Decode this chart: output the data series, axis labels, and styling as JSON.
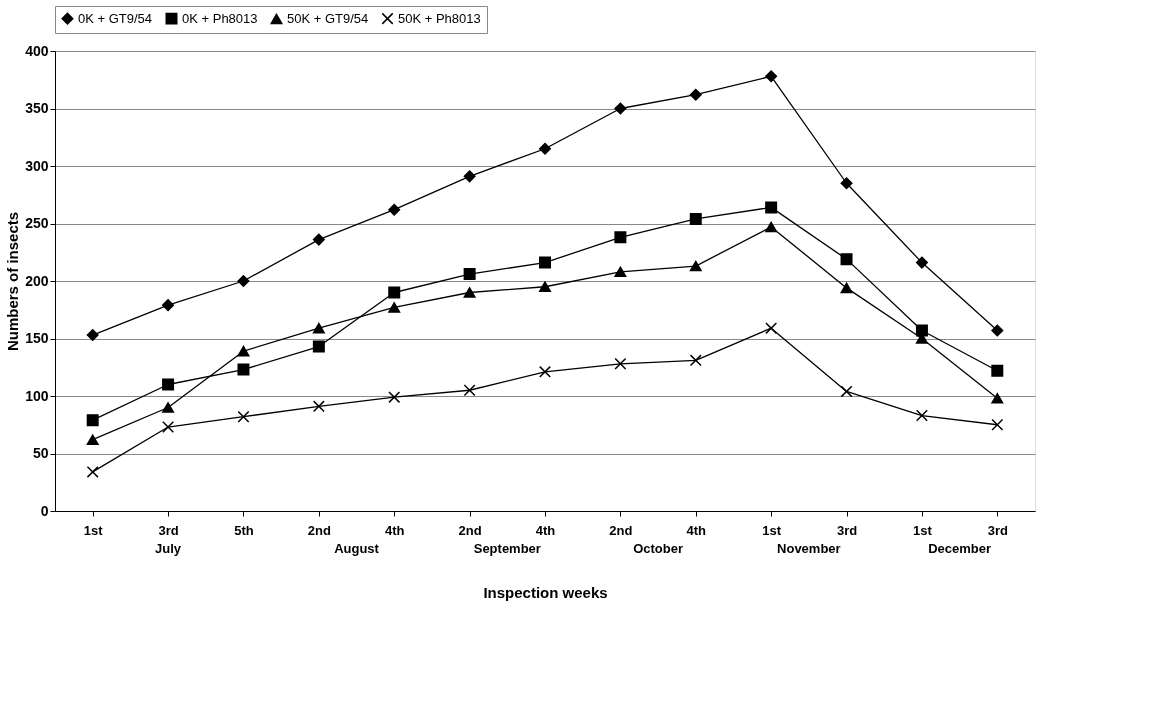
{
  "chart_data": {
    "type": "line",
    "xlabel": "Inspection weeks",
    "ylabel": "Numbers of insects",
    "categories": [
      "1st",
      "3rd",
      "5th",
      "2nd",
      "4th",
      "2nd",
      "4th",
      "2nd",
      "4th",
      "1st",
      "3rd",
      "1st",
      "3rd"
    ],
    "annotations": [
      "July",
      "August",
      "September",
      "October",
      "November",
      "December"
    ],
    "series": [
      {
        "name": "0K + GT9/54",
        "color": "#000000",
        "marker": "diamond",
        "values": [
          153,
          179,
          200,
          236,
          262,
          291,
          315,
          350,
          362,
          378,
          285,
          216,
          157
        ]
      },
      {
        "name": "0K + Ph8013",
        "color": "#000000",
        "marker": "square",
        "values": [
          79,
          110,
          123,
          143,
          190,
          206,
          216,
          238,
          254,
          264,
          219,
          157,
          122
        ]
      },
      {
        "name": "50K + GT9/54",
        "color": "#000000",
        "marker": "triangle",
        "values": [
          62,
          90,
          139,
          159,
          177,
          190,
          195,
          208,
          213,
          247,
          194,
          150,
          98
        ]
      },
      {
        "name": "50K + Ph8013",
        "color": "#000000",
        "marker": "cross",
        "values": [
          34,
          73,
          82,
          91,
          99,
          105,
          121,
          128,
          131,
          159,
          104,
          83,
          75
        ]
      }
    ],
    "ylim": [
      0,
      400
    ],
    "yticks": [
      0,
      50,
      100,
      150,
      200,
      250,
      300,
      350,
      400
    ],
    "grid": "y",
    "legend": "top",
    "line_style": "solid"
  }
}
